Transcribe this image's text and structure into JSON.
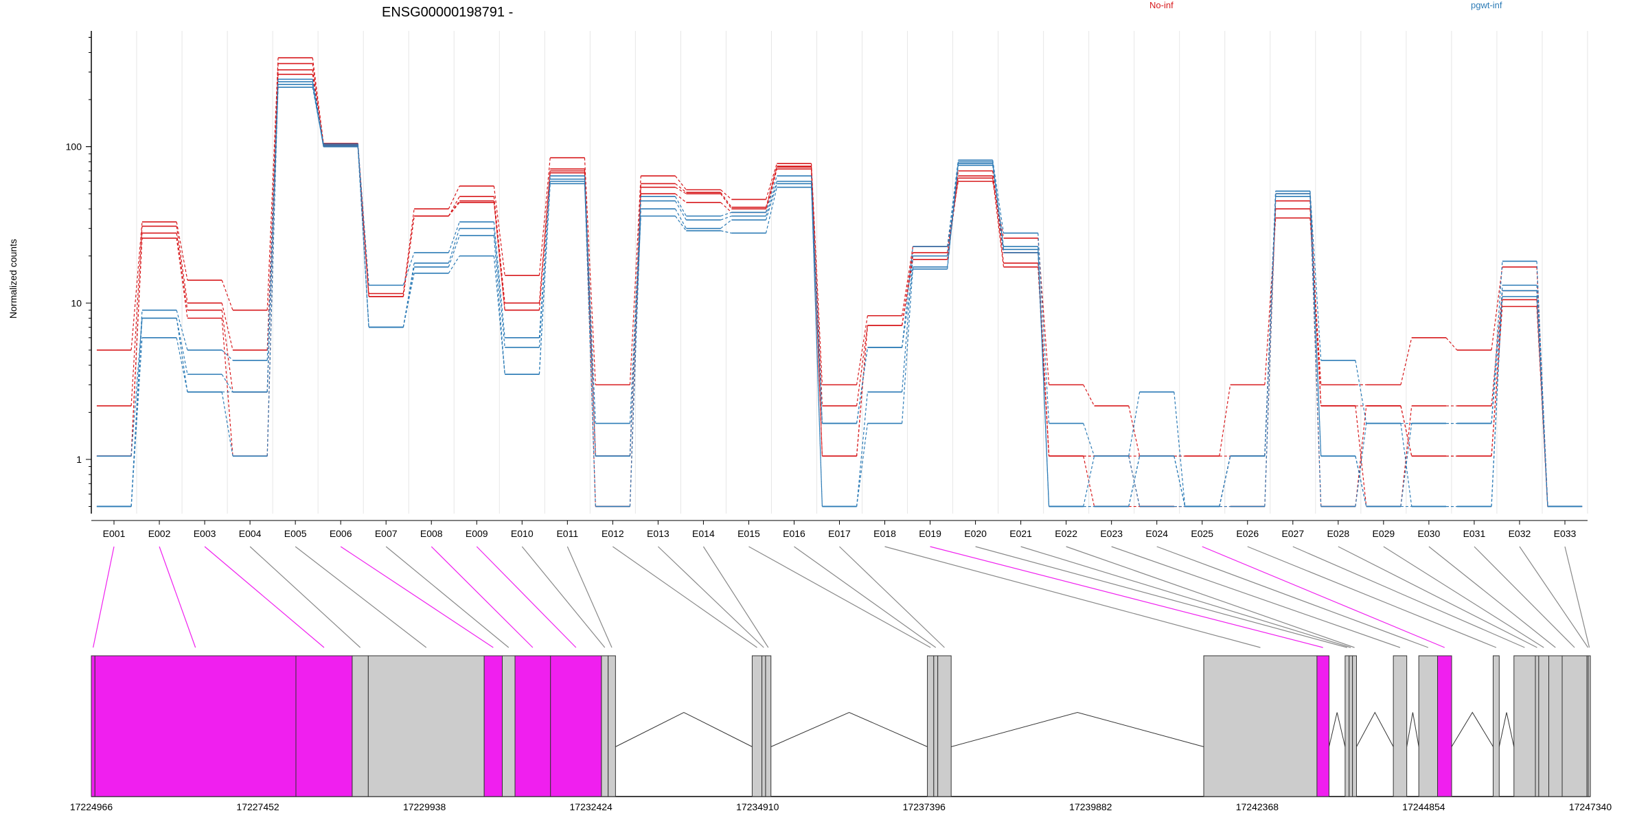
{
  "chart_data": {
    "type": "line",
    "title": "ENSG00000198791 -",
    "ylabel": "Normalized counts",
    "yscale": "log",
    "ylim": [
      0.45,
      550
    ],
    "yticks": [
      "1",
      "10",
      "100"
    ],
    "legend": [
      {
        "label": "No-inf",
        "color": "#d7191c"
      },
      {
        "label": "pgwt-inf",
        "color": "#2c7bb6"
      }
    ],
    "categories": [
      "E001",
      "E002",
      "E003",
      "E004",
      "E005",
      "E006",
      "E007",
      "E008",
      "E009",
      "E010",
      "E011",
      "E012",
      "E013",
      "E014",
      "E015",
      "E016",
      "E017",
      "E018",
      "E019",
      "E020",
      "E021",
      "E022",
      "E023",
      "E024",
      "E025",
      "E026",
      "E027",
      "E028",
      "E029",
      "E030",
      "E031",
      "E032",
      "E033"
    ],
    "series": [
      {
        "group": "No-inf",
        "color": "#d7191c",
        "values": [
          5,
          33,
          14,
          9,
          370,
          105,
          11.5,
          40,
          56,
          15,
          85,
          3,
          65,
          53,
          46,
          78,
          3,
          8.3,
          23,
          60,
          26,
          3,
          2.2,
          1.05,
          1.05,
          3,
          35,
          3,
          3,
          6,
          5,
          17,
          0.5
        ]
      },
      {
        "group": "No-inf",
        "color": "#d7191c",
        "values": [
          2.2,
          31,
          10,
          5,
          340,
          103,
          11,
          36,
          48,
          10,
          72,
          1.05,
          58,
          51,
          41,
          75,
          2.2,
          7.2,
          21,
          65,
          21,
          1.05,
          1.05,
          0.5,
          0.5,
          1.05,
          40,
          2.2,
          0.5,
          2.2,
          2.2,
          12,
          0.5
        ]
      },
      {
        "group": "No-inf",
        "color": "#d7191c",
        "values": [
          1.05,
          28,
          9,
          2.7,
          310,
          101,
          11,
          36,
          45,
          9,
          68,
          0.5,
          55,
          50,
          40,
          74,
          1.05,
          7.2,
          20,
          70,
          18,
          1.05,
          0.5,
          0.5,
          0.5,
          0.5,
          45,
          0.5,
          2.2,
          1.05,
          1.05,
          9.5,
          0.5
        ]
      },
      {
        "group": "No-inf",
        "color": "#d7191c",
        "values": [
          1.05,
          26,
          8,
          1.05,
          290,
          100,
          11,
          36,
          44,
          9,
          70,
          1.05,
          50,
          44,
          38,
          72,
          1.05,
          7.2,
          19,
          63,
          17,
          1.05,
          1.05,
          1.05,
          1.05,
          1.05,
          50,
          2.2,
          2.2,
          1.05,
          1.05,
          10.5,
          0.5
        ]
      },
      {
        "group": "pgwt-inf",
        "color": "#2c7bb6",
        "values": [
          0.5,
          9,
          5,
          4.3,
          270,
          104,
          13,
          21,
          33,
          6,
          65,
          1.7,
          48,
          36,
          38,
          65,
          1.7,
          5.2,
          23,
          82,
          28,
          1.7,
          1.05,
          2.7,
          0.5,
          1.05,
          52,
          4.3,
          1.7,
          1.7,
          1.7,
          18.5,
          0.5
        ]
      },
      {
        "group": "pgwt-inf",
        "color": "#2c7bb6",
        "values": [
          0.5,
          8,
          3.5,
          2.7,
          250,
          100,
          7,
          18,
          30,
          5.2,
          62,
          1.05,
          45,
          34,
          36,
          60,
          0.5,
          2.7,
          20,
          78,
          23,
          0.5,
          0.5,
          1.05,
          0.5,
          1.05,
          50,
          1.05,
          0.5,
          0.5,
          0.5,
          13,
          0.5
        ]
      },
      {
        "group": "pgwt-inf",
        "color": "#2c7bb6",
        "values": [
          1.05,
          8,
          2.7,
          2.7,
          240,
          102,
          7,
          17,
          27,
          3.5,
          60,
          0.5,
          40,
          30,
          34,
          58,
          0.5,
          1.7,
          17,
          76,
          22,
          0.5,
          0.5,
          1.05,
          0.5,
          0.5,
          48,
          0.5,
          1.7,
          0.5,
          0.5,
          12,
          0.5
        ]
      },
      {
        "group": "pgwt-inf",
        "color": "#2c7bb6",
        "values": [
          0.5,
          6,
          2.7,
          1.05,
          260,
          100,
          7,
          15.5,
          20,
          3.5,
          58,
          1.05,
          36,
          29,
          28,
          55,
          1.7,
          5.2,
          16.5,
          80,
          21,
          0.5,
          1.05,
          0.5,
          0.5,
          1.05,
          52,
          1.05,
          0.5,
          1.7,
          1.7,
          11,
          0.5
        ]
      }
    ],
    "gene_model": {
      "genomic_range": [
        17224966,
        17247340
      ],
      "coordinate_labels": [
        "17224966",
        "17227452",
        "17229938",
        "17232424",
        "17234910",
        "17237396",
        "17239882",
        "17242368",
        "17244854",
        "17247340"
      ],
      "exon_color": "#cccccc",
      "highlight_color": "#f01fef",
      "exons": [
        {
          "id": "E001",
          "start": 17224966,
          "end": 17225020,
          "highlight": true
        },
        {
          "id": "E002",
          "start": 17225020,
          "end": 17228020,
          "highlight": true
        },
        {
          "id": "E003",
          "start": 17228020,
          "end": 17228860,
          "highlight": true
        },
        {
          "id": "E004",
          "start": 17228860,
          "end": 17229100,
          "highlight": false
        },
        {
          "id": "E005",
          "start": 17229100,
          "end": 17230830,
          "highlight": false
        },
        {
          "id": "E006",
          "start": 17230830,
          "end": 17231100,
          "highlight": true
        },
        {
          "id": "E007",
          "start": 17231100,
          "end": 17231290,
          "highlight": false
        },
        {
          "id": "E008",
          "start": 17231290,
          "end": 17231820,
          "highlight": true
        },
        {
          "id": "E009",
          "start": 17231820,
          "end": 17232580,
          "highlight": true
        },
        {
          "id": "E010",
          "start": 17232580,
          "end": 17232680,
          "highlight": false
        },
        {
          "id": "E011",
          "start": 17232680,
          "end": 17232790,
          "highlight": false
        },
        {
          "id": "E012",
          "start": 17234830,
          "end": 17234975,
          "highlight": false
        },
        {
          "id": "E013",
          "start": 17234975,
          "end": 17235030,
          "highlight": false
        },
        {
          "id": "E014",
          "start": 17235030,
          "end": 17235110,
          "highlight": false
        },
        {
          "id": "E015",
          "start": 17237445,
          "end": 17237540,
          "highlight": false
        },
        {
          "id": "E016",
          "start": 17237540,
          "end": 17237600,
          "highlight": false
        },
        {
          "id": "E017",
          "start": 17237600,
          "end": 17237800,
          "highlight": false
        },
        {
          "id": "E018",
          "start": 17241570,
          "end": 17243260,
          "highlight": false
        },
        {
          "id": "E019",
          "start": 17243260,
          "end": 17243440,
          "highlight": true
        },
        {
          "id": "E020",
          "start": 17243680,
          "end": 17243740,
          "highlight": false
        },
        {
          "id": "E021",
          "start": 17243740,
          "end": 17243790,
          "highlight": false
        },
        {
          "id": "E022",
          "start": 17243790,
          "end": 17243850,
          "highlight": false
        },
        {
          "id": "E023",
          "start": 17244400,
          "end": 17244600,
          "highlight": false
        },
        {
          "id": "E024",
          "start": 17244780,
          "end": 17245060,
          "highlight": false
        },
        {
          "id": "E025",
          "start": 17245060,
          "end": 17245270,
          "highlight": true
        },
        {
          "id": "E026",
          "start": 17245890,
          "end": 17245980,
          "highlight": false
        },
        {
          "id": "E027",
          "start": 17246200,
          "end": 17246520,
          "highlight": false
        },
        {
          "id": "E028",
          "start": 17246520,
          "end": 17246570,
          "highlight": false
        },
        {
          "id": "E029",
          "start": 17246570,
          "end": 17246720,
          "highlight": false
        },
        {
          "id": "E030",
          "start": 17246720,
          "end": 17246920,
          "highlight": false
        },
        {
          "id": "E031",
          "start": 17246920,
          "end": 17247290,
          "highlight": false
        },
        {
          "id": "E032",
          "start": 17247290,
          "end": 17247310,
          "highlight": false
        },
        {
          "id": "E033",
          "start": 17247310,
          "end": 17247340,
          "highlight": false
        }
      ]
    }
  }
}
